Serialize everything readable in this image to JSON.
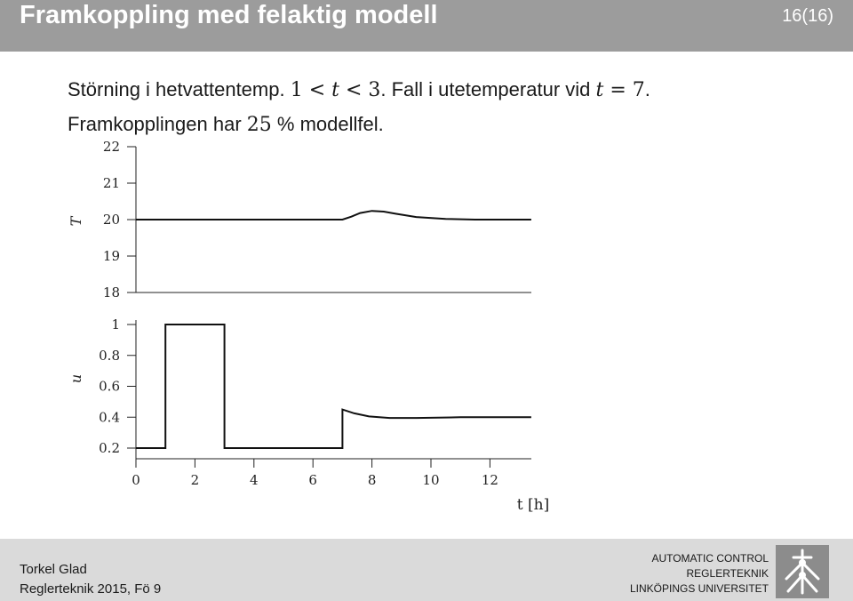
{
  "header": {
    "title": "Framkoppling med felaktig modell",
    "page": "16(16)"
  },
  "body": {
    "line1": {
      "pre": "Störning i hetvattentemp. ",
      "mid": ". Fall i utetemperatur vid ",
      "post": "."
    },
    "line2": {
      "pre": "Framkopplingen har ",
      "value": "25",
      "post": " % modellfel."
    }
  },
  "chart_data": [
    {
      "type": "line",
      "ylabel": "T",
      "xlabel": "t [h]",
      "ylim": [
        18,
        22
      ],
      "yticks": [
        "22",
        "21",
        "20",
        "19",
        "18"
      ],
      "xlim": [
        0,
        13.5
      ],
      "series": [
        {
          "x": [
            0,
            7.0,
            7.3,
            7.6,
            8.0,
            8.4,
            8.8,
            9.5,
            10.5,
            11.5,
            12.5,
            13.4
          ],
          "y": [
            20,
            20,
            20.08,
            20.18,
            20.24,
            20.22,
            20.16,
            20.07,
            20.02,
            20.0,
            20.0,
            20.0
          ]
        }
      ]
    },
    {
      "type": "line",
      "ylabel": "u",
      "xlim": [
        0,
        13.5
      ],
      "ylim": [
        0.2,
        1.0
      ],
      "yticks": [
        "1",
        "0.8",
        "0.6",
        "0.4",
        "0.2"
      ],
      "xticks": [
        "0",
        "2",
        "4",
        "6",
        "8",
        "10",
        "12"
      ],
      "series": [
        {
          "x": [
            0,
            1,
            1,
            3,
            3,
            7,
            7,
            7.4,
            7.9,
            8.6,
            9.5,
            11,
            13.4
          ],
          "y": [
            0.2,
            0.2,
            1.0,
            1.0,
            0.2,
            0.2,
            0.45,
            0.425,
            0.405,
            0.395,
            0.395,
            0.4,
            0.4
          ]
        }
      ]
    }
  ]
}
